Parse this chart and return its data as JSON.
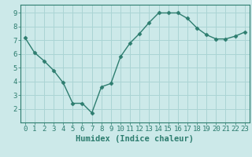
{
  "x": [
    0,
    1,
    2,
    3,
    4,
    5,
    6,
    7,
    8,
    9,
    10,
    11,
    12,
    13,
    14,
    15,
    16,
    17,
    18,
    19,
    20,
    21,
    22,
    23
  ],
  "y": [
    7.2,
    6.1,
    5.5,
    4.8,
    3.9,
    2.4,
    2.4,
    1.7,
    3.6,
    3.85,
    5.8,
    6.8,
    7.5,
    8.3,
    9.0,
    9.0,
    9.0,
    8.6,
    7.9,
    7.4,
    7.1,
    7.1,
    7.3,
    7.6
  ],
  "xlabel": "Humidex (Indice chaleur)",
  "xlim_left": -0.5,
  "xlim_right": 23.5,
  "ylim_bottom": 1.0,
  "ylim_top": 9.6,
  "yticks": [
    2,
    3,
    4,
    5,
    6,
    7,
    8,
    9
  ],
  "xticks": [
    0,
    1,
    2,
    3,
    4,
    5,
    6,
    7,
    8,
    9,
    10,
    11,
    12,
    13,
    14,
    15,
    16,
    17,
    18,
    19,
    20,
    21,
    22,
    23
  ],
  "line_color": "#2d7d6f",
  "marker": "D",
  "marker_size": 2.5,
  "background_color": "#cce9e9",
  "grid_color": "#aad4d4",
  "tick_label_fontsize": 6.5,
  "xlabel_fontsize": 7.5,
  "linewidth": 1.0
}
